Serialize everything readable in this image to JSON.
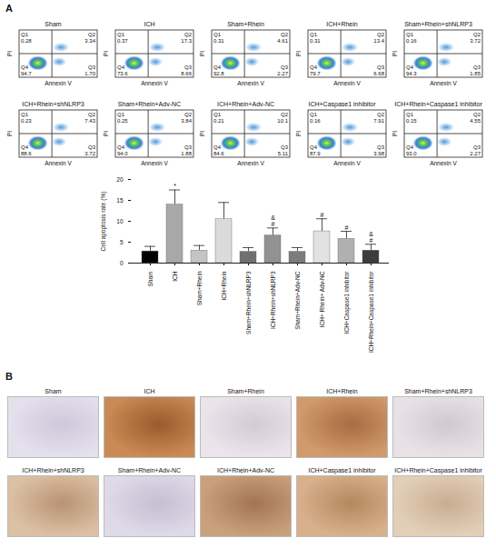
{
  "panel_labels": [
    "A",
    "B"
  ],
  "flow_cytometry": {
    "x_label": "Annexin V",
    "y_label": "PI",
    "quadrant_names": [
      "Q1",
      "Q2",
      "Q3",
      "Q4"
    ],
    "plots": [
      {
        "title": "Sham",
        "quadrants": [
          "0.28",
          "3.34",
          "1.70",
          "94.7"
        ]
      },
      {
        "title": "ICH",
        "quadrants": [
          "0.37",
          "17.3",
          "8.66",
          "73.6"
        ]
      },
      {
        "title": "Sham+Rhein",
        "quadrants": [
          "0.31",
          "4.61",
          "2.27",
          "92.8"
        ]
      },
      {
        "title": "ICH+Rhein",
        "quadrants": [
          "0.31",
          "13.4",
          "6.68",
          "79.7"
        ]
      },
      {
        "title": "Sham+Rhein+shNLRP3",
        "quadrants": [
          "0.16",
          "3.72",
          "1.85",
          "94.3"
        ]
      },
      {
        "title": "ICH+Rhein+shNLRP3",
        "quadrants": [
          "0.23",
          "7.43",
          "3.72",
          "88.6"
        ]
      },
      {
        "title": "Sham+Rhein+Adv-NC",
        "quadrants": [
          "0.25",
          "3.84",
          "1.88",
          "94.0"
        ]
      },
      {
        "title": "ICH+Rhein+Adv-NC",
        "quadrants": [
          "0.21",
          "10.1",
          "5.11",
          "84.6"
        ]
      },
      {
        "title": "ICH+Caspase1 inhibitor",
        "quadrants": [
          "0.16",
          "7.91",
          "3.98",
          "87.9"
        ]
      },
      {
        "title": "ICH+Rhein+Caspase1 inhibitor",
        "quadrants": [
          "0.15",
          "4.55",
          "2.27",
          "93.0"
        ]
      }
    ]
  },
  "chart_data": {
    "type": "bar",
    "y_label": "Cell apoptosis rate (%)",
    "categories": [
      "Sham",
      "ICH",
      "Sham+Rhein",
      "ICH+Rhein",
      "Sham+Rhein+shNLRP3",
      "ICH+Rhein+shNLRP3",
      "Sham+Rhein+Adv-NC",
      "ICH+ Rhein+ Adv-NC",
      "ICH+Caspase1 inhibitor",
      "ICH+Rhein+Caspase1 inhibitor"
    ],
    "values": [
      2.8,
      14.0,
      3.0,
      10.5,
      2.7,
      6.6,
      2.7,
      7.6,
      5.8,
      3.0
    ],
    "errors": [
      1.2,
      3.5,
      1.2,
      4.0,
      1.0,
      1.8,
      1.0,
      3.0,
      1.8,
      1.5
    ],
    "annotations": [
      [],
      [
        "*"
      ],
      [],
      [],
      [],
      [
        "&",
        "#"
      ],
      [],
      [
        "#"
      ],
      [
        "#"
      ],
      [
        "&",
        "#"
      ]
    ],
    "colors": [
      "#000000",
      "#a8a8a8",
      "#c4c4c4",
      "#dadada",
      "#707070",
      "#929292",
      "#7c7c7c",
      "#e2e2e2",
      "#b0b0b0",
      "#3c3c3c"
    ],
    "ylim": [
      0,
      20
    ],
    "yticks": [
      0,
      5,
      10,
      15,
      20
    ]
  },
  "ihc_images": {
    "titles": [
      "Sham",
      "ICH",
      "Sham+Rhein",
      "ICH+Rhein",
      "Sham+Rhein+shNLRP3",
      "ICH+Rhein+shNLRP3",
      "Sham+Rhein+Adv-NC",
      "ICH+Rhein+Adv-NC",
      "ICH+Caspase1 inhibitor",
      "ICH+Rhein+Caspase1 inhibitor"
    ]
  }
}
